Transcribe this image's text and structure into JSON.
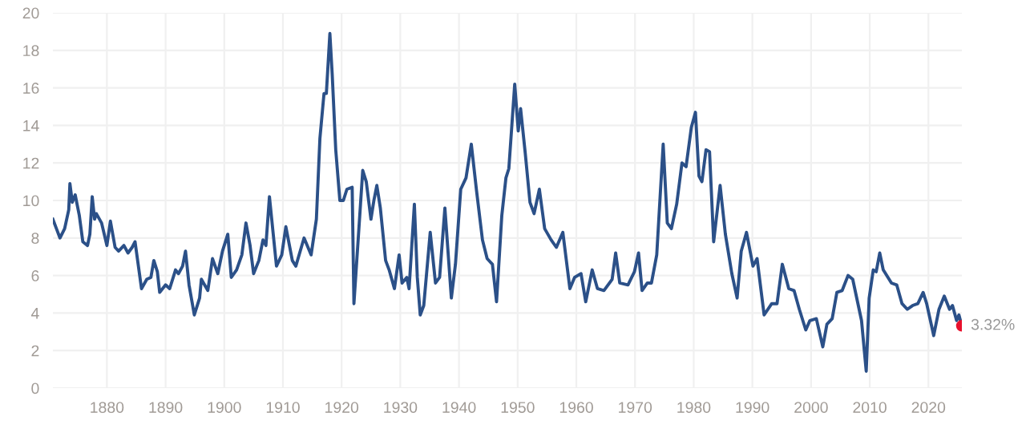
{
  "chart_data": {
    "type": "line",
    "xlim": [
      1870.8,
      2025.7
    ],
    "xticks": [
      1880,
      1890,
      1900,
      1910,
      1920,
      1930,
      1940,
      1950,
      1960,
      1970,
      1980,
      1990,
      2000,
      2010,
      2020
    ],
    "ylim": [
      0,
      20
    ],
    "yticks": [
      0,
      2,
      4,
      6,
      8,
      10,
      12,
      14,
      16,
      18,
      20
    ],
    "grid": true,
    "series": [
      {
        "color": "#2b5088",
        "x": [
          1870.8,
          1871.4,
          1872,
          1872.8,
          1873.5,
          1873.7,
          1874.1,
          1874.6,
          1875.3,
          1875.9,
          1876.7,
          1877.1,
          1877.5,
          1877.9,
          1878.2,
          1879.1,
          1880,
          1880.6,
          1881.4,
          1882,
          1882.9,
          1883.6,
          1884.3,
          1884.8,
          1885.9,
          1886.8,
          1887.5,
          1888,
          1888.6,
          1889,
          1890,
          1890.7,
          1891.7,
          1892.2,
          1892.9,
          1893.4,
          1894,
          1894.9,
          1895.8,
          1896.1,
          1897.2,
          1898,
          1898.9,
          1899.7,
          1900.6,
          1901.2,
          1902.1,
          1903,
          1903.7,
          1904.4,
          1905,
          1905.9,
          1906.6,
          1907.1,
          1907.7,
          1908.9,
          1909.8,
          1910.5,
          1911.6,
          1912.2,
          1913.6,
          1914.8,
          1915.7,
          1916.3,
          1917,
          1917.4,
          1918,
          1918.4,
          1919,
          1919.7,
          1920.3,
          1920.9,
          1921.8,
          1922.1,
          1923.6,
          1924.2,
          1925,
          1925.5,
          1926,
          1926.6,
          1927.5,
          1928.1,
          1929,
          1929.8,
          1930.3,
          1931.1,
          1931.5,
          1932.4,
          1932.9,
          1933.4,
          1934,
          1935.1,
          1936,
          1936.7,
          1937.6,
          1938.7,
          1939.4,
          1940.3,
          1941.2,
          1942.1,
          1943,
          1944,
          1944.8,
          1945.7,
          1946.4,
          1947.3,
          1948,
          1948.5,
          1949.5,
          1950.1,
          1950.5,
          1951.3,
          1952.1,
          1952.8,
          1953.7,
          1954.6,
          1955.7,
          1956.6,
          1957.7,
          1958.9,
          1959.7,
          1960.8,
          1961.6,
          1962.7,
          1963.6,
          1964.7,
          1966.1,
          1966.7,
          1967.4,
          1968.8,
          1969.9,
          1970.6,
          1971.2,
          1972.1,
          1972.8,
          1973.7,
          1974.8,
          1975.5,
          1976.2,
          1977.1,
          1978,
          1978.7,
          1979.6,
          1980.3,
          1980.9,
          1981.4,
          1982.1,
          1982.7,
          1983.4,
          1984.5,
          1985.4,
          1986.5,
          1987.4,
          1988.1,
          1989,
          1990.1,
          1990.8,
          1992,
          1993.3,
          1994.2,
          1995.1,
          1996.2,
          1997.1,
          1998,
          1999.1,
          1999.8,
          2000.9,
          2002,
          2002.7,
          2003.6,
          2004.4,
          2005.3,
          2006.3,
          2007.1,
          2008.6,
          2009.4,
          2009.9,
          2010.6,
          2011.1,
          2011.7,
          2012.3,
          2013.7,
          2014.6,
          2015.5,
          2016.4,
          2017.3,
          2018.2,
          2019.1,
          2019.7,
          2020.9,
          2021.8,
          2022.7,
          2023.6,
          2024.1,
          2024.8,
          2025.2,
          2025.7
        ],
        "values": [
          9.0,
          8.5,
          8.0,
          8.5,
          9.5,
          10.9,
          9.9,
          10.3,
          9.2,
          7.8,
          7.6,
          8.2,
          10.2,
          9.0,
          9.3,
          8.8,
          7.6,
          8.9,
          7.5,
          7.3,
          7.6,
          7.2,
          7.5,
          7.8,
          5.3,
          5.8,
          5.9,
          6.8,
          6.2,
          5.1,
          5.5,
          5.3,
          6.3,
          6.1,
          6.5,
          7.3,
          5.5,
          3.9,
          4.8,
          5.8,
          5.2,
          6.9,
          6.1,
          7.3,
          8.2,
          5.9,
          6.3,
          7.1,
          8.8,
          7.6,
          6.1,
          6.8,
          7.9,
          7.6,
          10.2,
          6.5,
          7.1,
          8.6,
          6.8,
          6.5,
          8.0,
          7.1,
          9.0,
          13.3,
          15.7,
          15.7,
          18.9,
          16.7,
          12.7,
          10.0,
          10.0,
          10.6,
          10.7,
          4.5,
          11.6,
          11.0,
          9.0,
          10.0,
          10.8,
          9.6,
          6.8,
          6.3,
          5.3,
          7.1,
          5.6,
          5.9,
          5.3,
          9.8,
          5.9,
          3.9,
          4.4,
          8.3,
          5.6,
          5.9,
          9.6,
          4.8,
          6.6,
          10.6,
          11.2,
          13.0,
          10.5,
          7.9,
          6.9,
          6.6,
          4.6,
          9.2,
          11.2,
          11.7,
          16.2,
          13.7,
          14.9,
          12.5,
          9.9,
          9.3,
          10.6,
          8.5,
          7.9,
          7.5,
          8.3,
          5.3,
          5.9,
          6.1,
          4.6,
          6.3,
          5.3,
          5.2,
          5.8,
          7.2,
          5.6,
          5.5,
          6.2,
          7.2,
          5.2,
          5.6,
          5.6,
          7.1,
          13.0,
          8.8,
          8.5,
          9.8,
          12.0,
          11.8,
          13.9,
          14.7,
          11.3,
          11.0,
          12.7,
          12.6,
          7.8,
          10.8,
          8.2,
          6.1,
          4.8,
          7.3,
          8.3,
          6.5,
          6.9,
          3.9,
          4.5,
          4.5,
          6.6,
          5.3,
          5.2,
          4.2,
          3.1,
          3.6,
          3.7,
          2.2,
          3.4,
          3.7,
          5.1,
          5.2,
          6.0,
          5.8,
          3.6,
          0.9,
          4.8,
          6.3,
          6.2,
          7.2,
          6.3,
          5.6,
          5.5,
          4.5,
          4.2,
          4.4,
          4.5,
          5.1,
          4.5,
          2.8,
          4.2,
          4.9,
          4.2,
          4.4,
          3.6,
          3.9,
          3.3
        ]
      },
      {
        "type": "scatter",
        "color": "#e8112d",
        "x": [
          2025.7
        ],
        "values": [
          3.32
        ],
        "value_labels": [
          "3.32%"
        ]
      }
    ]
  }
}
